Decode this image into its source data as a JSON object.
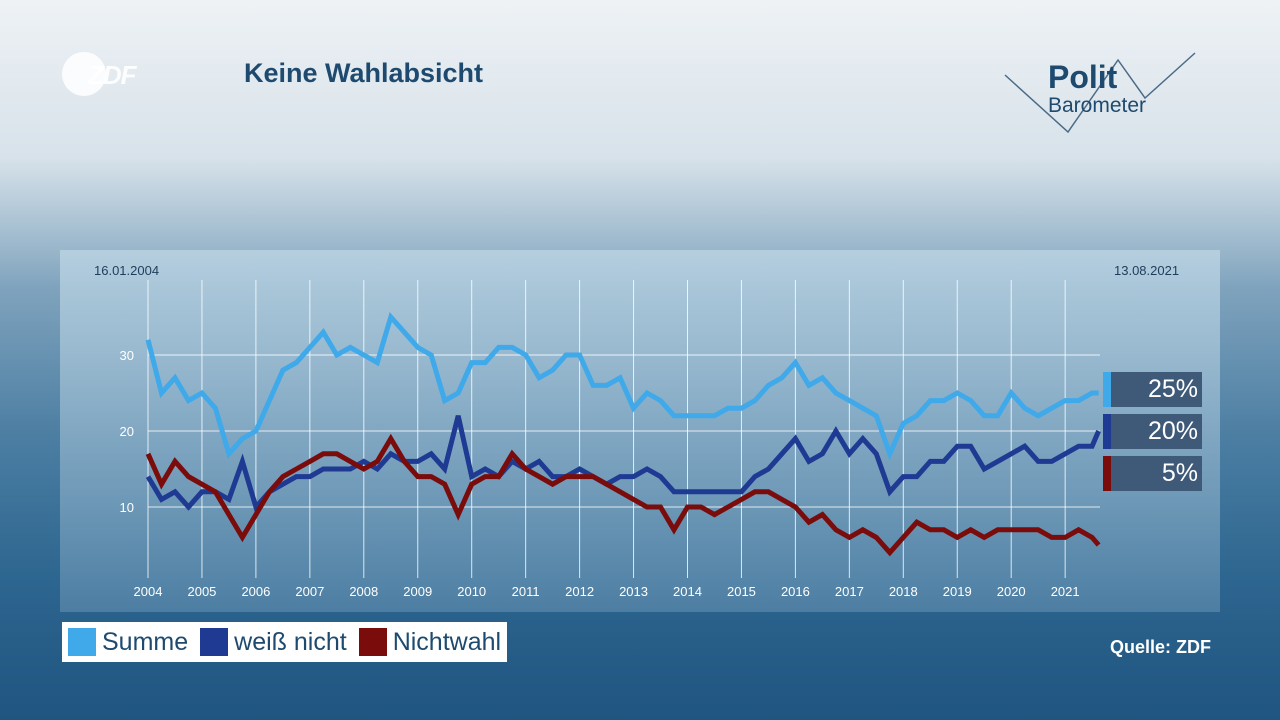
{
  "header": {
    "title": "Keine Wahlabsicht",
    "logo_left": "ZDF",
    "logo_right_line1": "Polit",
    "logo_right_line2": "Barometer"
  },
  "chart_data": {
    "type": "line",
    "title": "Keine Wahlabsicht",
    "date_start": "16.01.2004",
    "date_end": "13.08.2021",
    "xlim": [
      2004,
      2021.7
    ],
    "ylim": [
      0,
      37
    ],
    "x_ticks": [
      "2004",
      "2005",
      "2006",
      "2007",
      "2008",
      "2009",
      "2010",
      "2011",
      "2012",
      "2013",
      "2014",
      "2015",
      "2016",
      "2017",
      "2018",
      "2019",
      "2020",
      "2021"
    ],
    "y_ticks": [
      "10",
      "20",
      "30"
    ],
    "grid": true,
    "legend_position": "bottom-left",
    "x": [
      2004,
      2004.25,
      2004.5,
      2004.75,
      2005,
      2005.25,
      2005.5,
      2005.75,
      2006,
      2006.25,
      2006.5,
      2006.75,
      2007,
      2007.25,
      2007.5,
      2007.75,
      2008,
      2008.25,
      2008.5,
      2008.75,
      2009,
      2009.25,
      2009.5,
      2009.75,
      2010,
      2010.25,
      2010.5,
      2010.75,
      2011,
      2011.25,
      2011.5,
      2011.75,
      2012,
      2012.25,
      2012.5,
      2012.75,
      2013,
      2013.25,
      2013.5,
      2013.75,
      2014,
      2014.25,
      2014.5,
      2014.75,
      2015,
      2015.25,
      2015.5,
      2015.75,
      2016,
      2016.25,
      2016.5,
      2016.75,
      2017,
      2017.25,
      2017.5,
      2017.75,
      2018,
      2018.25,
      2018.5,
      2018.75,
      2019,
      2019.25,
      2019.5,
      2019.75,
      2020,
      2020.25,
      2020.5,
      2020.75,
      2021,
      2021.25,
      2021.5,
      2021.62
    ],
    "series": [
      {
        "name": "Summe",
        "color": "#3fa9ea",
        "end_label": "25%",
        "values": [
          32,
          25,
          27,
          24,
          25,
          23,
          17,
          19,
          20,
          24,
          28,
          29,
          31,
          33,
          30,
          31,
          30,
          29,
          35,
          33,
          31,
          30,
          24,
          25,
          29,
          29,
          31,
          31,
          30,
          27,
          28,
          30,
          30,
          26,
          26,
          27,
          23,
          25,
          24,
          22,
          22,
          22,
          22,
          23,
          23,
          24,
          26,
          27,
          29,
          26,
          27,
          25,
          24,
          23,
          22,
          17,
          21,
          22,
          24,
          24,
          25,
          24,
          22,
          22,
          25,
          23,
          22,
          23,
          24,
          24,
          25,
          25
        ]
      },
      {
        "name": "weiß nicht",
        "color": "#1f3a93",
        "end_label": "20%",
        "values": [
          14,
          11,
          12,
          10,
          12,
          12,
          11,
          16,
          10,
          12,
          13,
          14,
          14,
          15,
          15,
          15,
          16,
          15,
          17,
          16,
          16,
          17,
          15,
          22,
          14,
          15,
          14,
          16,
          15,
          16,
          14,
          14,
          15,
          14,
          13,
          14,
          14,
          15,
          14,
          12,
          12,
          12,
          12,
          12,
          12,
          14,
          15,
          17,
          19,
          16,
          17,
          20,
          17,
          19,
          17,
          12,
          14,
          14,
          16,
          16,
          18,
          18,
          15,
          16,
          17,
          18,
          16,
          16,
          17,
          18,
          18,
          20
        ]
      },
      {
        "name": "Nichtwahl",
        "color": "#7a0c0c",
        "end_label": "5%",
        "values": [
          17,
          13,
          16,
          14,
          13,
          12,
          9,
          6,
          9,
          12,
          14,
          15,
          16,
          17,
          17,
          16,
          15,
          16,
          19,
          16,
          14,
          14,
          13,
          9,
          13,
          14,
          14,
          17,
          15,
          14,
          13,
          14,
          14,
          14,
          13,
          12,
          11,
          10,
          10,
          7,
          10,
          10,
          9,
          10,
          11,
          12,
          12,
          11,
          10,
          8,
          9,
          7,
          6,
          7,
          6,
          4,
          6,
          8,
          7,
          7,
          6,
          7,
          6,
          7,
          7,
          7,
          7,
          6,
          6,
          7,
          6,
          5
        ]
      }
    ]
  },
  "source": "Quelle: ZDF"
}
